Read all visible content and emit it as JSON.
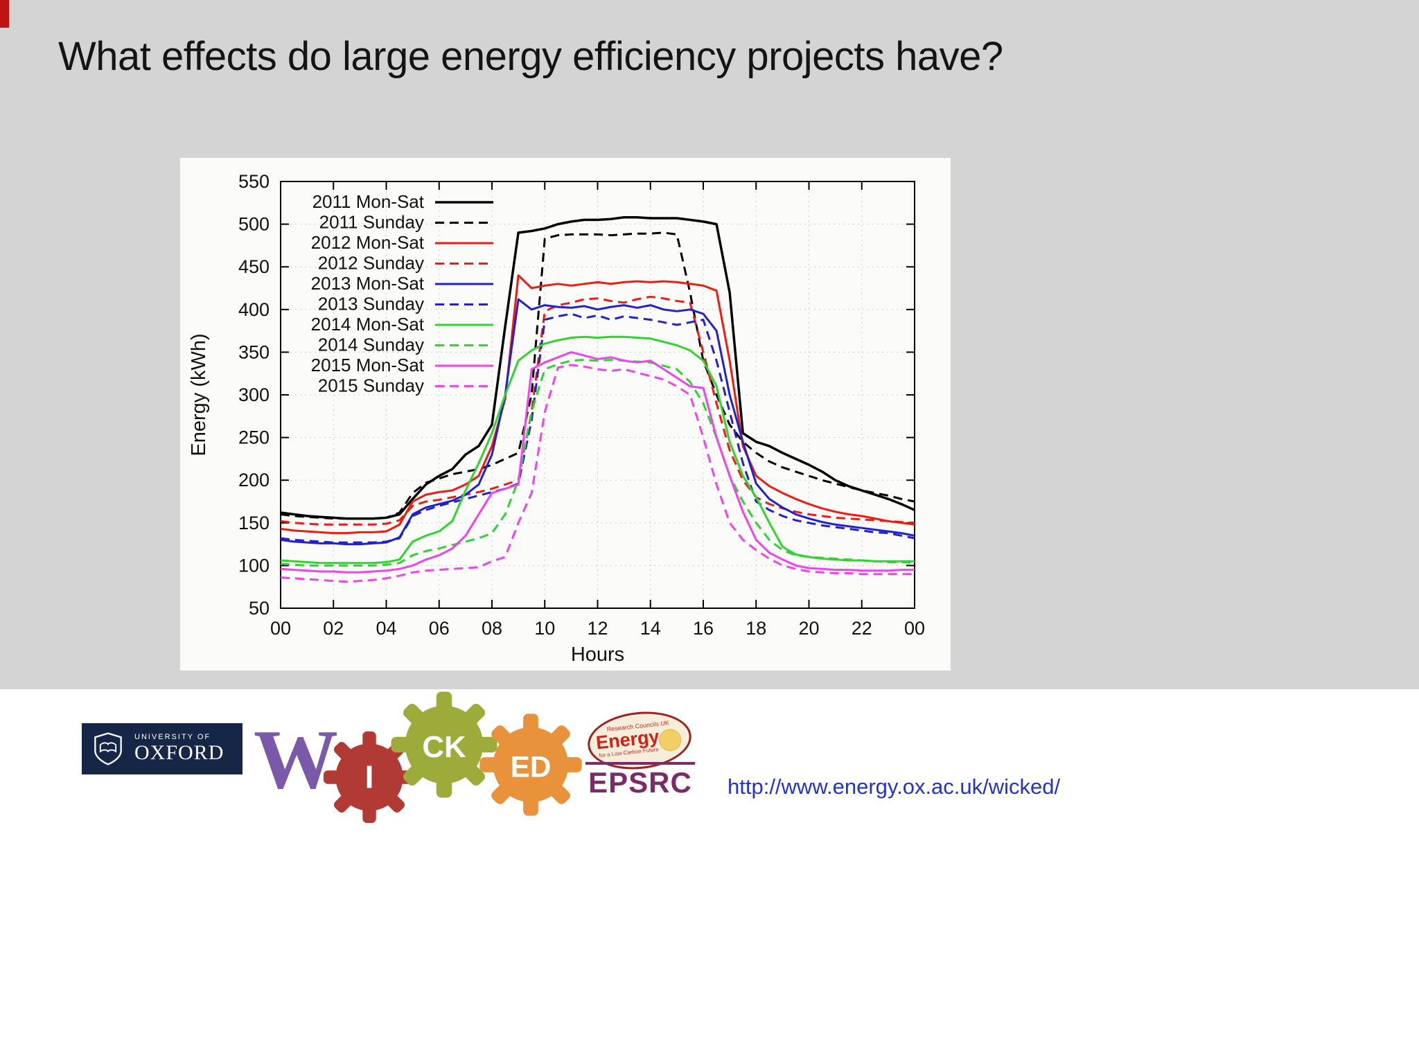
{
  "slide": {
    "title": "What effects do large energy efficiency projects have?",
    "url": "http://www.energy.ox.ac.uk/wicked/"
  },
  "logos": {
    "oxford": {
      "line1": "UNIVERSITY OF",
      "line2": "OXFORD"
    },
    "wicked": {
      "w": "W",
      "w_color": "#7a5aa8",
      "i": "I",
      "i_color": "#b23a35",
      "ck": "CK",
      "ck_color": "#9cab39",
      "ed": "ED",
      "ed_color": "#e9923c"
    },
    "energy": {
      "top": "Research Councils UK",
      "label": "Energy",
      "sub": "for a Low Carbon Future",
      "accent": "#d02318"
    },
    "epsrc": {
      "label": "EPSRC",
      "color": "#7d2a68"
    }
  },
  "chart_data": {
    "type": "line",
    "title": "",
    "xlabel": "Hours",
    "ylabel": "Energy (kWh)",
    "xlim": [
      0,
      24
    ],
    "ylim": [
      50,
      550
    ],
    "grid": true,
    "legend_position": "top-left",
    "x_ticks": {
      "values": [
        0,
        2,
        4,
        6,
        8,
        10,
        12,
        14,
        16,
        18,
        20,
        22,
        24
      ],
      "labels": [
        "00",
        "02",
        "04",
        "06",
        "08",
        "10",
        "12",
        "14",
        "16",
        "18",
        "20",
        "22",
        "00"
      ]
    },
    "y_ticks": [
      50,
      100,
      150,
      200,
      250,
      300,
      350,
      400,
      450,
      500,
      550
    ],
    "x": [
      0,
      0.5,
      1,
      1.5,
      2,
      2.5,
      3,
      3.5,
      4,
      4.5,
      5,
      5.5,
      6,
      6.5,
      7,
      7.5,
      8,
      8.5,
      9,
      9.5,
      10,
      10.5,
      11,
      11.5,
      12,
      12.5,
      13,
      13.5,
      14,
      14.5,
      15,
      15.5,
      16,
      16.5,
      17,
      17.5,
      18,
      18.5,
      19,
      19.5,
      20,
      20.5,
      21,
      21.5,
      22,
      22.5,
      23,
      23.5,
      24
    ],
    "series": [
      {
        "name": "2011 Mon-Sat",
        "color": "#000000",
        "dash": false,
        "width": 3.5,
        "values": [
          162,
          160,
          158,
          157,
          156,
          155,
          155,
          155,
          156,
          160,
          178,
          195,
          205,
          213,
          230,
          240,
          265,
          380,
          490,
          492,
          495,
          500,
          503,
          505,
          505,
          506,
          508,
          508,
          507,
          507,
          507,
          505,
          503,
          500,
          420,
          255,
          245,
          240,
          232,
          225,
          218,
          210,
          200,
          193,
          188,
          183,
          178,
          172,
          165
        ]
      },
      {
        "name": "2011 Sunday",
        "color": "#000000",
        "dash": true,
        "width": 3,
        "values": [
          160,
          158,
          157,
          156,
          155,
          155,
          155,
          155,
          156,
          162,
          185,
          197,
          202,
          207,
          210,
          213,
          218,
          225,
          232,
          300,
          483,
          487,
          488,
          488,
          488,
          487,
          488,
          489,
          489,
          490,
          488,
          420,
          340,
          300,
          265,
          245,
          232,
          222,
          215,
          210,
          205,
          200,
          196,
          192,
          188,
          185,
          182,
          178,
          175
        ]
      },
      {
        "name": "2012 Mon-Sat",
        "color": "#ee1c10",
        "dash": false,
        "width": 3,
        "values": [
          143,
          141,
          140,
          139,
          138,
          138,
          139,
          139,
          140,
          148,
          175,
          183,
          186,
          188,
          195,
          205,
          240,
          295,
          440,
          425,
          428,
          430,
          428,
          430,
          432,
          430,
          432,
          433,
          432,
          433,
          432,
          430,
          428,
          422,
          340,
          240,
          205,
          193,
          185,
          178,
          172,
          167,
          163,
          160,
          158,
          155,
          152,
          150,
          148
        ]
      },
      {
        "name": "2012 Sunday",
        "color": "#ee1c10",
        "dash": true,
        "width": 3,
        "values": [
          152,
          150,
          149,
          148,
          148,
          148,
          148,
          148,
          149,
          153,
          170,
          175,
          177,
          180,
          183,
          186,
          190,
          195,
          200,
          280,
          398,
          405,
          408,
          412,
          413,
          410,
          408,
          412,
          415,
          413,
          410,
          408,
          350,
          290,
          235,
          200,
          180,
          172,
          167,
          163,
          160,
          158,
          156,
          155,
          154,
          153,
          152,
          151,
          150
        ]
      },
      {
        "name": "2013 Mon-Sat",
        "color": "#2020d0",
        "dash": false,
        "width": 3,
        "values": [
          130,
          128,
          127,
          126,
          126,
          125,
          125,
          126,
          127,
          133,
          160,
          168,
          172,
          176,
          183,
          195,
          230,
          300,
          412,
          400,
          405,
          403,
          402,
          404,
          400,
          403,
          405,
          402,
          405,
          400,
          398,
          400,
          395,
          375,
          300,
          245,
          196,
          178,
          168,
          160,
          155,
          151,
          148,
          146,
          144,
          142,
          140,
          138,
          135
        ]
      },
      {
        "name": "2013 Sunday",
        "color": "#2020d0",
        "dash": true,
        "width": 3,
        "values": [
          132,
          130,
          129,
          128,
          127,
          127,
          127,
          127,
          128,
          132,
          158,
          165,
          170,
          174,
          178,
          182,
          186,
          190,
          196,
          270,
          388,
          392,
          395,
          390,
          393,
          388,
          392,
          390,
          388,
          385,
          382,
          385,
          388,
          340,
          280,
          220,
          175,
          165,
          158,
          153,
          150,
          147,
          145,
          143,
          141,
          139,
          138,
          135,
          132
        ]
      },
      {
        "name": "2014 Mon-Sat",
        "color": "#2fd42f",
        "dash": false,
        "width": 3,
        "values": [
          106,
          105,
          104,
          103,
          103,
          103,
          103,
          103,
          104,
          107,
          128,
          135,
          140,
          152,
          188,
          220,
          255,
          300,
          340,
          352,
          360,
          364,
          367,
          368,
          367,
          368,
          368,
          367,
          366,
          362,
          358,
          352,
          340,
          310,
          245,
          205,
          180,
          150,
          122,
          113,
          110,
          108,
          107,
          106,
          106,
          105,
          105,
          105,
          105
        ]
      },
      {
        "name": "2014 Sunday",
        "color": "#2fd42f",
        "dash": true,
        "width": 3,
        "values": [
          102,
          101,
          100,
          100,
          100,
          100,
          100,
          100,
          101,
          103,
          112,
          117,
          120,
          124,
          128,
          132,
          138,
          160,
          200,
          280,
          330,
          336,
          340,
          341,
          340,
          341,
          340,
          339,
          338,
          334,
          330,
          315,
          290,
          250,
          205,
          175,
          150,
          130,
          118,
          112,
          110,
          109,
          108,
          107,
          106,
          105,
          104,
          104,
          103
        ]
      },
      {
        "name": "2015 Mon-Sat",
        "color": "#f042f0",
        "dash": false,
        "width": 3,
        "values": [
          96,
          95,
          94,
          93,
          93,
          92,
          92,
          93,
          94,
          96,
          100,
          107,
          112,
          120,
          135,
          160,
          185,
          190,
          195,
          330,
          338,
          344,
          350,
          346,
          342,
          344,
          340,
          338,
          340,
          330,
          320,
          310,
          308,
          250,
          205,
          163,
          130,
          115,
          107,
          100,
          97,
          96,
          95,
          95,
          94,
          94,
          94,
          95,
          95
        ]
      },
      {
        "name": "2015 Sunday",
        "color": "#f042f0",
        "dash": true,
        "width": 3,
        "values": [
          86,
          85,
          84,
          83,
          82,
          81,
          82,
          83,
          85,
          88,
          92,
          94,
          95,
          96,
          97,
          98,
          105,
          110,
          150,
          185,
          280,
          332,
          335,
          333,
          330,
          328,
          330,
          326,
          322,
          318,
          310,
          300,
          250,
          195,
          150,
          130,
          118,
          108,
          100,
          96,
          93,
          92,
          91,
          91,
          90,
          90,
          90,
          90,
          90
        ]
      }
    ]
  }
}
